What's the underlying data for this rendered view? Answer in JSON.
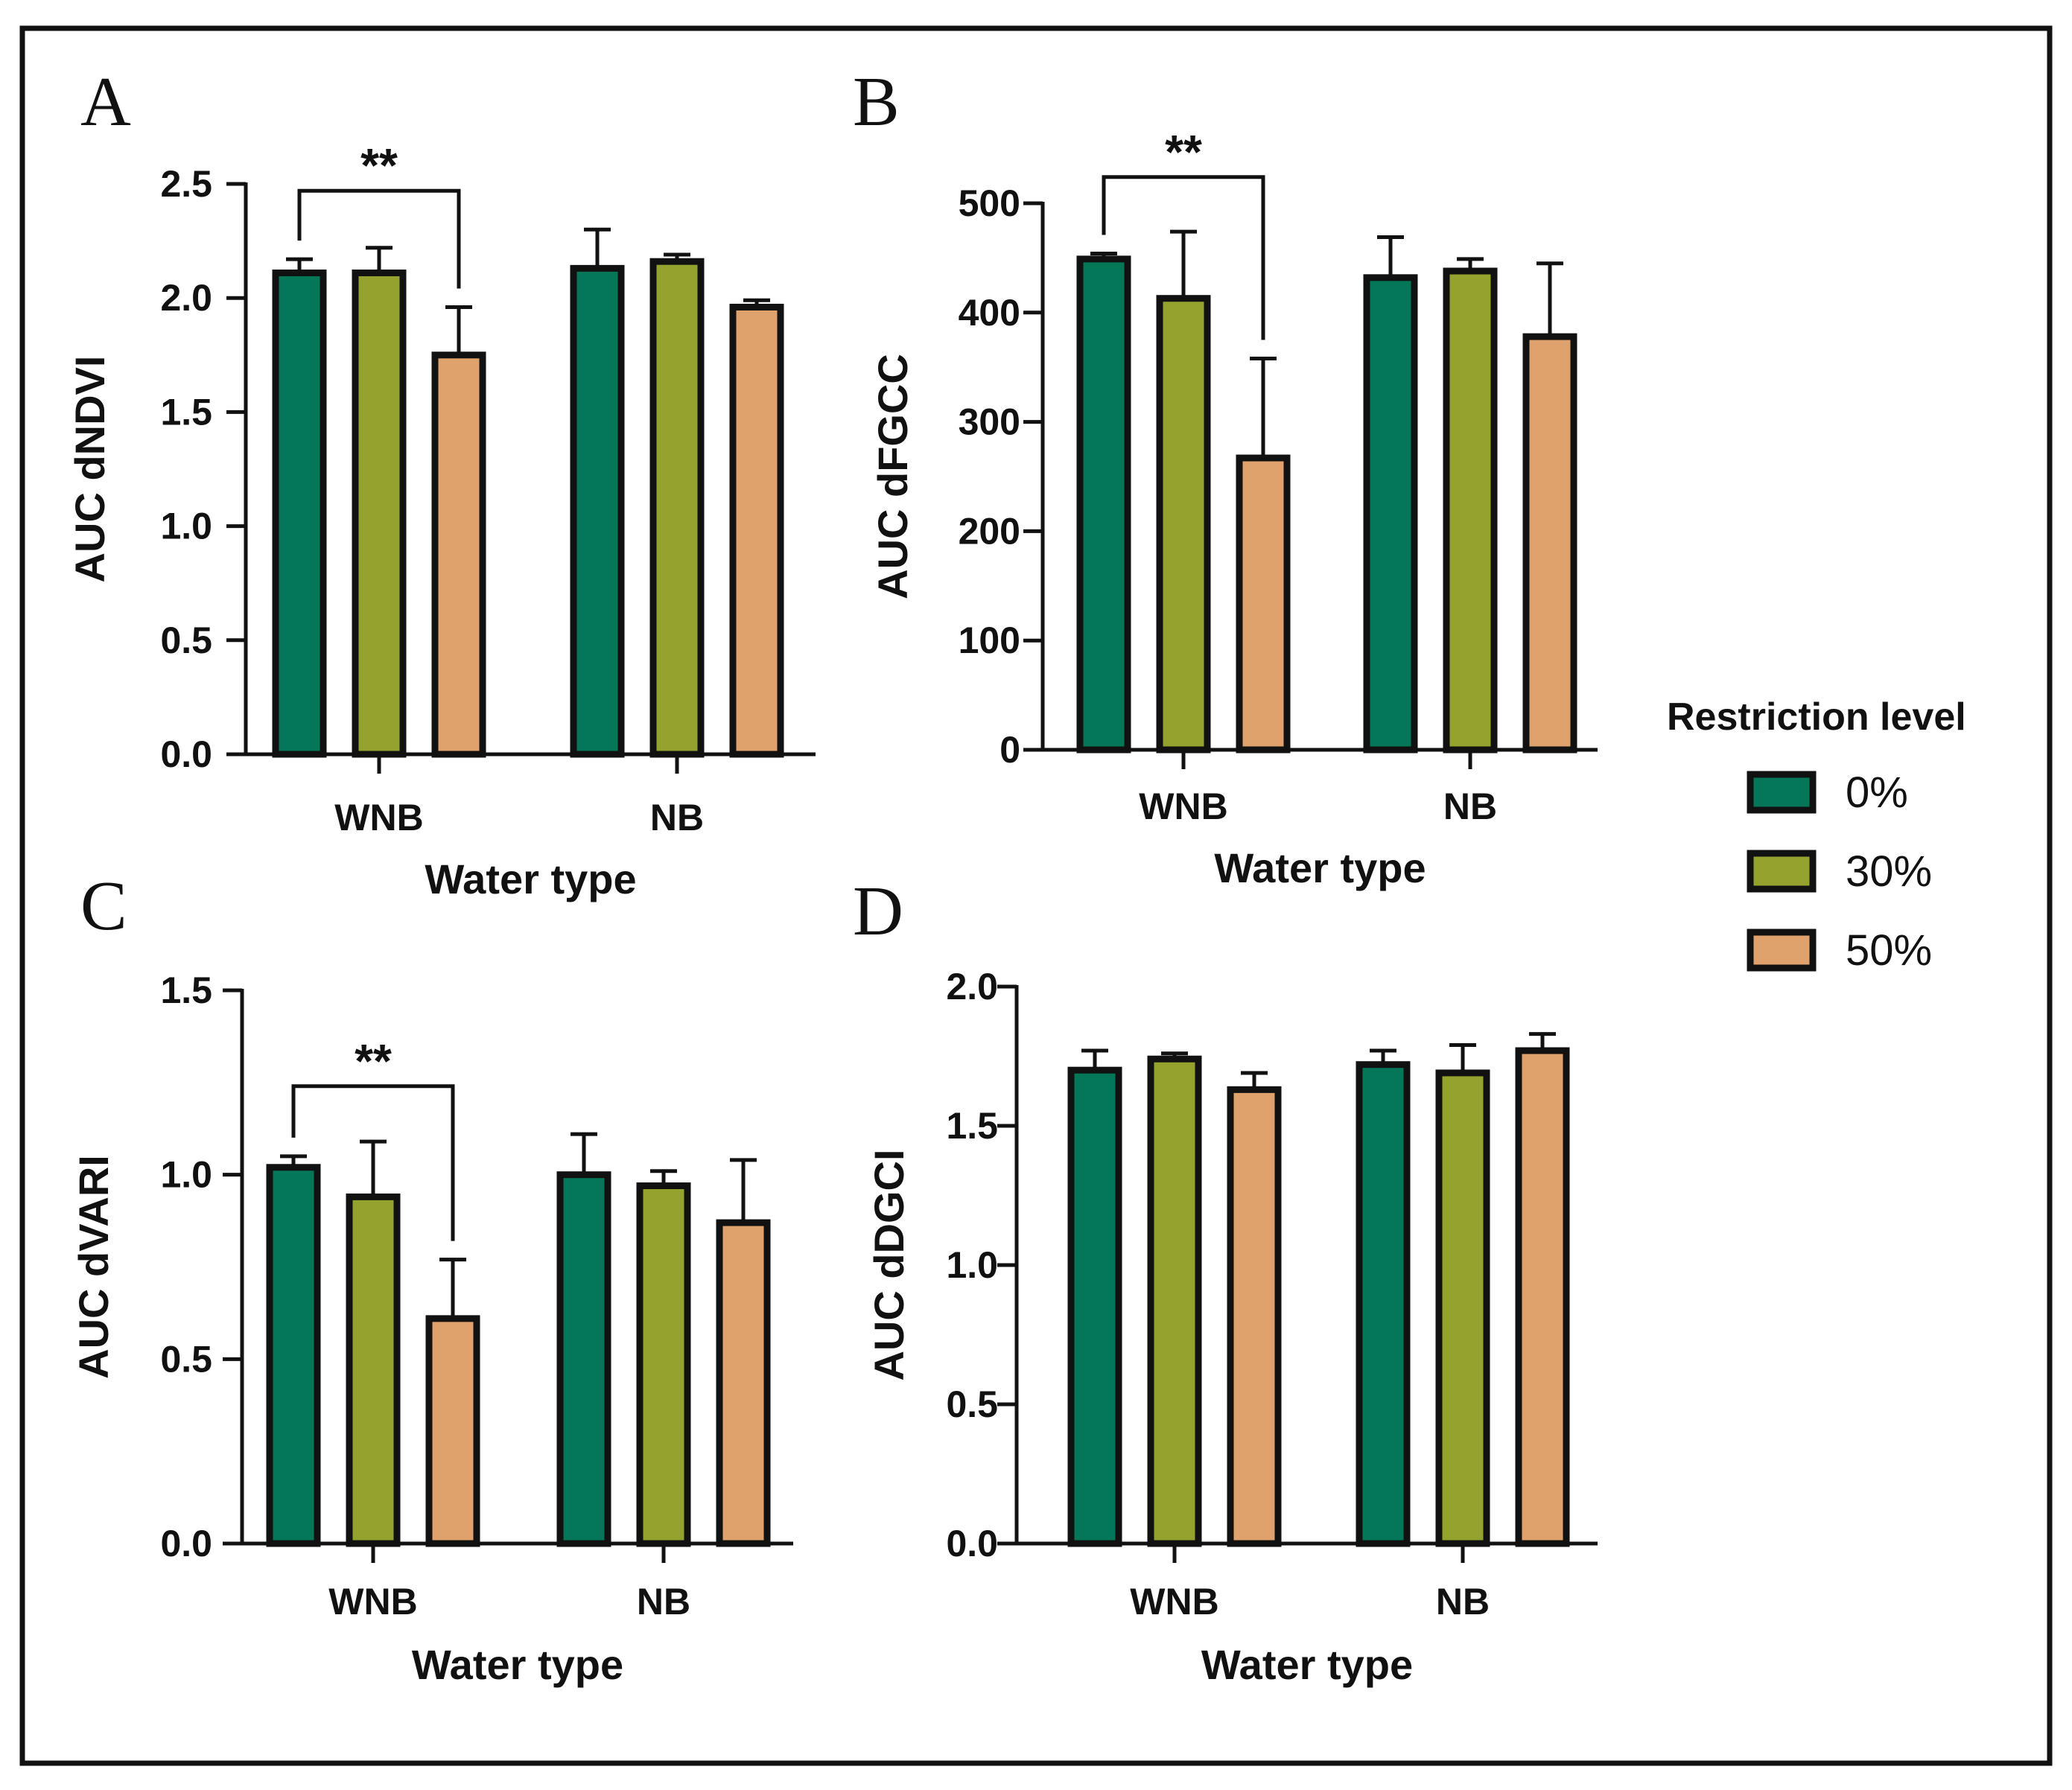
{
  "colors": {
    "0%": "#037758",
    "30%": "#95a22d",
    "50%": "#dfa26d",
    "stroke": "#111111"
  },
  "legend": {
    "title": "Restriction level",
    "items": [
      {
        "label": "0%",
        "color": "#037758"
      },
      {
        "label": "30%",
        "color": "#95a22d"
      },
      {
        "label": "50%",
        "color": "#dfa26d"
      }
    ]
  },
  "chart_data": [
    {
      "panel": "A",
      "type": "bar",
      "categories": [
        "WNB",
        "NB"
      ],
      "xlabel": "Water type",
      "ylabel": "AUC dNDVI",
      "ylim": [
        0,
        2.5
      ],
      "yticks": [
        "0.0",
        "0.5",
        "1.0",
        "1.5",
        "2.0",
        "2.5"
      ],
      "series": [
        {
          "name": "0%",
          "values": [
            2.11,
            2.13
          ],
          "errors": [
            0.06,
            0.17
          ]
        },
        {
          "name": "30%",
          "values": [
            2.11,
            2.16
          ],
          "errors": [
            0.11,
            0.03
          ]
        },
        {
          "name": "50%",
          "values": [
            1.75,
            1.96
          ],
          "errors": [
            0.21,
            0.03
          ]
        }
      ],
      "significance": {
        "label": "**",
        "category": "WNB",
        "from": "0%",
        "to": "50%"
      }
    },
    {
      "panel": "B",
      "type": "bar",
      "categories": [
        "WNB",
        "NB"
      ],
      "xlabel": "Water type",
      "ylabel": "AUC dFGCC",
      "ylim": [
        0,
        500
      ],
      "yticks": [
        "0",
        "100",
        "200",
        "300",
        "400",
        "500"
      ],
      "series": [
        {
          "name": "0%",
          "values": [
            449,
            432
          ],
          "errors": [
            5,
            37
          ]
        },
        {
          "name": "30%",
          "values": [
            413,
            438
          ],
          "errors": [
            61,
            11
          ]
        },
        {
          "name": "50%",
          "values": [
            267,
            378
          ],
          "errors": [
            91,
            67
          ]
        }
      ],
      "significance": {
        "label": "**",
        "category": "WNB",
        "from": "0%",
        "to": "50%"
      }
    },
    {
      "panel": "C",
      "type": "bar",
      "categories": [
        "WNB",
        "NB"
      ],
      "xlabel": "Water type",
      "ylabel": "AUC dVARI",
      "ylim": [
        0,
        1.5
      ],
      "yticks": [
        "0.0",
        "0.5",
        "1.0",
        "1.5"
      ],
      "series": [
        {
          "name": "0%",
          "values": [
            1.02,
            1.0
          ],
          "errors": [
            0.03,
            0.11
          ]
        },
        {
          "name": "30%",
          "values": [
            0.94,
            0.97
          ],
          "errors": [
            0.15,
            0.04
          ]
        },
        {
          "name": "50%",
          "values": [
            0.61,
            0.87
          ],
          "errors": [
            0.16,
            0.17
          ]
        }
      ],
      "significance": {
        "label": "**",
        "category": "WNB",
        "from": "0%",
        "to": "50%"
      }
    },
    {
      "panel": "D",
      "type": "bar",
      "categories": [
        "WNB",
        "NB"
      ],
      "xlabel": "Water type",
      "ylabel": "AUC dDGCI",
      "ylim": [
        0,
        2.0
      ],
      "yticks": [
        "0.0",
        "0.5",
        "1.0",
        "1.5",
        "2.0"
      ],
      "series": [
        {
          "name": "0%",
          "values": [
            1.7,
            1.72
          ],
          "errors": [
            0.07,
            0.05
          ]
        },
        {
          "name": "30%",
          "values": [
            1.74,
            1.69
          ],
          "errors": [
            0.02,
            0.1
          ]
        },
        {
          "name": "50%",
          "values": [
            1.63,
            1.77
          ],
          "errors": [
            0.06,
            0.06
          ]
        }
      ],
      "significance": null
    }
  ]
}
